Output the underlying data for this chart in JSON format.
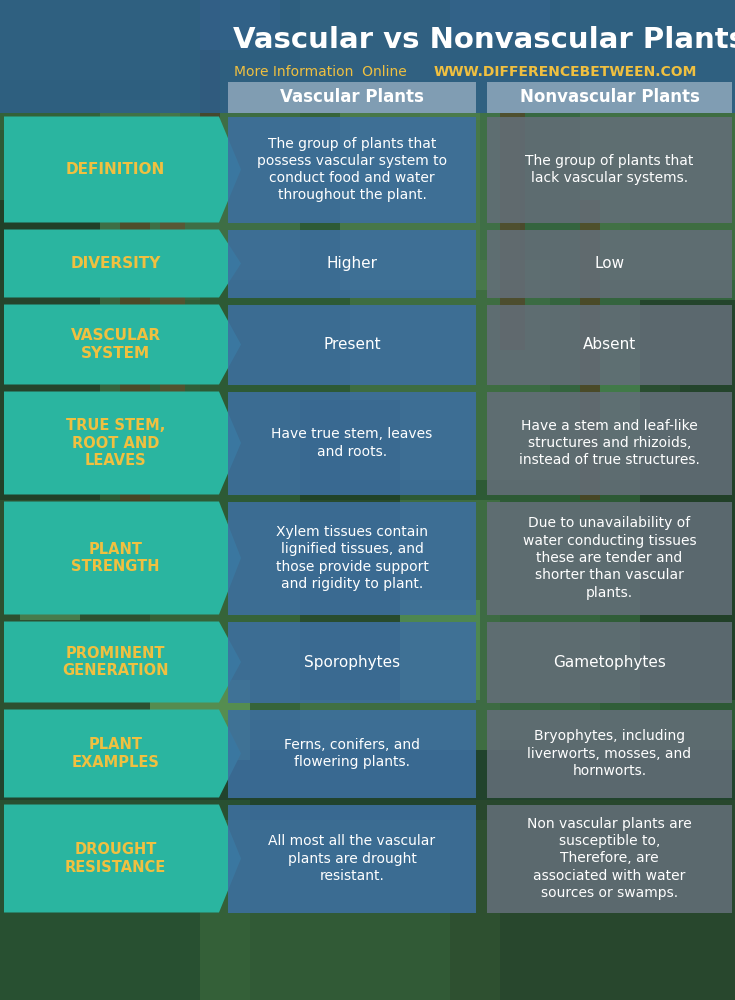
{
  "title": "Vascular vs Nonvascular Plants",
  "subtitle": "More Information  Online",
  "website": "WWW.DIFFERENCEBETWEEN.COM",
  "col_headers": [
    "Vascular Plants",
    "Nonvascular Plants"
  ],
  "row_labels": [
    "DEFINITION",
    "DIVERSITY",
    "VASCULAR\nSYSTEM",
    "TRUE STEM,\nROOT AND\nLEAVES",
    "PLANT\nSTRENGTH",
    "PROMINENT\nGENERATION",
    "PLANT\nEXAMPLES",
    "DROUGHT\nRESISTANCE"
  ],
  "vascular_col": [
    "The group of plants that\npossess vascular system to\nconduct food and water\nthroughout the plant.",
    "Higher",
    "Present",
    "Have true stem, leaves\nand roots.",
    "Xylem tissues contain\nlignified tissues, and\nthose provide support\nand rigidity to plant.",
    "Sporophytes",
    "Ferns, conifers, and\nflowering plants.",
    "All most all the vascular\nplants are drought\nresistant."
  ],
  "nonvascular_col": [
    "The group of plants that\nlack vascular systems.",
    "Low",
    "Absent",
    "Have a stem and leaf-like\nstructures and rhizoids,\ninstead of true structures.",
    "Due to unavailability of\nwater conducting tissues\nthese are tender and\nshorter than vascular\nplants.",
    "Gametophytes",
    "Bryophytes, including\nliverworts, mosses, and\nhornworts.",
    "Non vascular plants are\nsusceptible to,\nTherefore, are\nassociated with water\nsources or swamps."
  ],
  "title_bg_color": "#2e5f8a",
  "title_bg_alpha": 0.88,
  "teal_color": "#2ab5a0",
  "blue_cell_color": "#3d6fa0",
  "blue_cell_alpha": 0.88,
  "gray_cell_color": "#636e78",
  "gray_cell_alpha": 0.88,
  "header_bg": "#8fa8bc",
  "header_bg_alpha": 0.85,
  "title_color": "#ffffff",
  "subtitle_color": "#f0c040",
  "website_color": "#f0c040",
  "label_text_color": "#f0c040",
  "cell_text_color": "#ffffff",
  "header_text_color": "#ffffff",
  "bg_forest_colors": [
    [
      "#2d5a3d",
      "#4a7c50",
      "#3d6b45",
      "#5a8c55",
      "#2d5a3d"
    ],
    [
      "#1a3d28",
      "#3d6b45",
      "#4a7c50",
      "#2d5a3d",
      "#1a3d28"
    ],
    [
      "#4a7c50",
      "#5a8c55",
      "#3d6b45",
      "#4a7c50",
      "#5a8c55"
    ],
    [
      "#2d5a3d",
      "#3d6b45",
      "#1a3d28",
      "#3d6b45",
      "#2d5a3d"
    ]
  ]
}
